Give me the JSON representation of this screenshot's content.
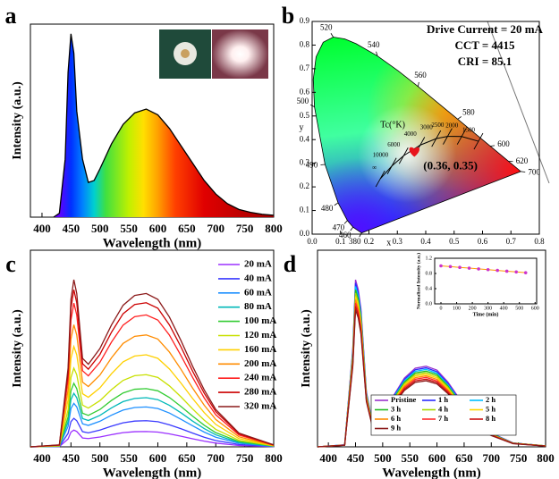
{
  "chart_data": [
    {
      "type": "spectrum",
      "panel_label": "a",
      "xlabel": "Wavelength (nm)",
      "ylabel": "Intensity (a.u.)",
      "x": [
        420,
        430,
        440,
        445,
        450,
        455,
        460,
        470,
        480,
        490,
        500,
        520,
        540,
        560,
        580,
        600,
        620,
        640,
        660,
        680,
        700,
        720,
        740,
        760,
        780,
        800
      ],
      "values": [
        0,
        0.02,
        0.3,
        0.75,
        0.95,
        0.85,
        0.55,
        0.3,
        0.18,
        0.19,
        0.25,
        0.38,
        0.48,
        0.54,
        0.56,
        0.53,
        0.46,
        0.37,
        0.28,
        0.19,
        0.12,
        0.07,
        0.04,
        0.025,
        0.015,
        0.01
      ],
      "color": "#000000",
      "fill": "spectral",
      "xlim": [
        380,
        800
      ],
      "ylim": [
        0,
        1
      ],
      "xticks": [
        400,
        450,
        500,
        550,
        600,
        650,
        700,
        750,
        800
      ]
    },
    {
      "type": "cie",
      "panel_label": "b",
      "xlabel": "x",
      "ylabel": "y",
      "xlim": [
        0,
        0.8
      ],
      "ylim": [
        0,
        0.9
      ],
      "xticks": [
        {
          "value": 0.0,
          "label": "0.0"
        },
        0.1,
        0.2,
        0.3,
        0.4,
        0.5,
        0.6,
        0.7,
        0.8
      ],
      "yticks": [
        {
          "value": 0.0,
          "label": "0.0"
        },
        0.1,
        0.2,
        0.3,
        0.4,
        0.5,
        0.6,
        0.7,
        0.8,
        0.9
      ],
      "annotations": [
        "Drive Current = 20 mA",
        "CCT = 4415",
        "CRI = 85.1"
      ],
      "point": {
        "x": 0.36,
        "y": 0.35,
        "label": "(0.36, 0.35)",
        "color": "#e8141c"
      },
      "spectral_locus": {
        "wavelengths": [
          380,
          460,
          470,
          480,
          490,
          500,
          null,
          null,
          null,
          520,
          null,
          null,
          540,
          null,
          560,
          580,
          600,
          620,
          700
        ],
        "x": [
          0.1741,
          0.144,
          0.1241,
          0.0913,
          0.0454,
          0.0082,
          0.0039,
          0.0139,
          0.0389,
          0.0743,
          0.1142,
          0.1547,
          0.2296,
          0.3016,
          0.3731,
          0.5125,
          0.627,
          0.6915,
          0.7347
        ],
        "y": [
          0.005,
          0.0297,
          0.0578,
          0.1327,
          0.295,
          0.5384,
          0.6548,
          0.7502,
          0.812,
          0.8338,
          0.8262,
          0.8059,
          0.7543,
          0.6923,
          0.6245,
          0.4866,
          0.3725,
          0.3083,
          0.2653
        ]
      },
      "planckian_locus": {
        "title": "Tc(°K)",
        "labels": [
          "∞",
          "10000",
          "6000",
          "4000",
          "3000",
          "2500",
          "2000",
          "1500"
        ],
        "x": [
          0.2399,
          0.2807,
          0.3221,
          0.3805,
          0.4369,
          0.4769,
          0.5266,
          0.5857
        ],
        "y": [
          0.2342,
          0.2883,
          0.3318,
          0.3768,
          0.4041,
          0.4137,
          0.4133,
          0.3931
        ]
      }
    },
    {
      "type": "line",
      "panel_label": "c",
      "xlabel": "Wavelength (nm)",
      "ylabel": "Intensity (a.u.)",
      "x": [
        380,
        430,
        445,
        450,
        455,
        460,
        470,
        480,
        500,
        520,
        540,
        560,
        580,
        600,
        620,
        640,
        660,
        680,
        700,
        740,
        800
      ],
      "xlim": [
        380,
        800
      ],
      "ylim": [
        0,
        1
      ],
      "xticks": [
        400,
        450,
        500,
        550,
        600,
        650,
        700,
        750,
        800
      ],
      "legend": "upper right",
      "series": [
        {
          "name": "20 mA",
          "color": "#9b30ff",
          "values": [
            0,
            0.001,
            0.04,
            0.075,
            0.085,
            0.078,
            0.045,
            0.042,
            0.05,
            0.062,
            0.072,
            0.077,
            0.078,
            0.075,
            0.066,
            0.054,
            0.041,
            0.029,
            0.019,
            0.007,
            0.001
          ]
        },
        {
          "name": "40 mA",
          "color": "#3a3aff",
          "values": [
            0,
            0.002,
            0.068,
            0.128,
            0.145,
            0.133,
            0.077,
            0.071,
            0.085,
            0.105,
            0.122,
            0.131,
            0.133,
            0.128,
            0.112,
            0.092,
            0.07,
            0.049,
            0.032,
            0.012,
            0.002
          ]
        },
        {
          "name": "60 mA",
          "color": "#1e90ff",
          "values": [
            0,
            0.003,
            0.104,
            0.195,
            0.221,
            0.203,
            0.117,
            0.109,
            0.13,
            0.161,
            0.187,
            0.2,
            0.203,
            0.195,
            0.172,
            0.14,
            0.107,
            0.075,
            0.049,
            0.018,
            0.003
          ]
        },
        {
          "name": "80 mA",
          "color": "#00b8b8",
          "values": [
            0,
            0.003,
            0.128,
            0.24,
            0.272,
            0.25,
            0.144,
            0.134,
            0.16,
            0.198,
            0.23,
            0.246,
            0.25,
            0.24,
            0.211,
            0.173,
            0.131,
            0.093,
            0.061,
            0.022,
            0.003
          ]
        },
        {
          "name": "100 mA",
          "color": "#33cc33",
          "values": [
            0,
            0.004,
            0.152,
            0.285,
            0.323,
            0.296,
            0.171,
            0.16,
            0.19,
            0.236,
            0.274,
            0.293,
            0.296,
            0.285,
            0.251,
            0.205,
            0.156,
            0.11,
            0.072,
            0.027,
            0.004
          ]
        },
        {
          "name": "120 mA",
          "color": "#c8e000",
          "values": [
            0,
            0.005,
            0.188,
            0.353,
            0.4,
            0.367,
            0.212,
            0.197,
            0.235,
            0.291,
            0.338,
            0.362,
            0.367,
            0.353,
            0.31,
            0.254,
            0.193,
            0.136,
            0.089,
            0.033,
            0.005
          ]
        },
        {
          "name": "160 mA",
          "color": "#ffd000",
          "values": [
            0,
            0.006,
            0.24,
            0.45,
            0.51,
            0.468,
            0.27,
            0.252,
            0.3,
            0.372,
            0.432,
            0.462,
            0.468,
            0.45,
            0.396,
            0.324,
            0.246,
            0.174,
            0.114,
            0.042,
            0.006
          ]
        },
        {
          "name": "200 mA",
          "color": "#ff8c00",
          "values": [
            0,
            0.007,
            0.292,
            0.548,
            0.621,
            0.569,
            0.329,
            0.307,
            0.365,
            0.453,
            0.526,
            0.562,
            0.569,
            0.548,
            0.482,
            0.394,
            0.299,
            0.212,
            0.139,
            0.051,
            0.007
          ]
        },
        {
          "name": "240 mA",
          "color": "#ff2020",
          "values": [
            0,
            0.009,
            0.344,
            0.645,
            0.731,
            0.671,
            0.387,
            0.361,
            0.43,
            0.533,
            0.619,
            0.662,
            0.671,
            0.645,
            0.568,
            0.464,
            0.353,
            0.249,
            0.163,
            0.06,
            0.009
          ]
        },
        {
          "name": "280 mA",
          "color": "#cc0000",
          "values": [
            0,
            0.009,
            0.376,
            0.705,
            0.799,
            0.733,
            0.423,
            0.395,
            0.47,
            0.583,
            0.677,
            0.724,
            0.733,
            0.705,
            0.62,
            0.508,
            0.385,
            0.273,
            0.179,
            0.066,
            0.009
          ]
        },
        {
          "name": "320 mA",
          "color": "#8b1a1a",
          "values": [
            0,
            0.01,
            0.4,
            0.75,
            0.85,
            0.78,
            0.45,
            0.42,
            0.5,
            0.62,
            0.72,
            0.77,
            0.78,
            0.75,
            0.66,
            0.54,
            0.41,
            0.29,
            0.19,
            0.07,
            0.01
          ]
        }
      ]
    },
    {
      "type": "line",
      "panel_label": "d",
      "xlabel": "Wavelength (nm)",
      "ylabel": "Intensity (a.u.)",
      "x": [
        380,
        430,
        445,
        450,
        455,
        460,
        470,
        480,
        500,
        520,
        540,
        560,
        580,
        600,
        620,
        640,
        660,
        680,
        700,
        740,
        800
      ],
      "xlim": [
        380,
        800
      ],
      "ylim": [
        0,
        1
      ],
      "xticks": [
        400,
        450,
        500,
        550,
        600,
        650,
        700,
        750,
        800
      ],
      "legend": "lower center",
      "series": [
        {
          "name": "Pristine",
          "color": "#9932cc",
          "values": [
            0,
            0.01,
            0.5,
            0.85,
            0.8,
            0.7,
            0.28,
            0.14,
            0.15,
            0.26,
            0.35,
            0.4,
            0.41,
            0.39,
            0.33,
            0.25,
            0.17,
            0.11,
            0.07,
            0.02,
            0.005
          ]
        },
        {
          "name": "1 h",
          "color": "#2a2aff",
          "values": [
            0,
            0.01,
            0.49,
            0.833,
            0.784,
            0.686,
            0.274,
            0.137,
            0.147,
            0.255,
            0.343,
            0.392,
            0.402,
            0.382,
            0.323,
            0.245,
            0.167,
            0.108,
            0.069,
            0.02,
            0.005
          ]
        },
        {
          "name": "2 h",
          "color": "#00bfff",
          "values": [
            0,
            0.01,
            0.48,
            0.816,
            0.768,
            0.672,
            0.269,
            0.134,
            0.144,
            0.25,
            0.336,
            0.384,
            0.394,
            0.374,
            0.317,
            0.24,
            0.163,
            0.106,
            0.067,
            0.019,
            0.005
          ]
        },
        {
          "name": "3 h",
          "color": "#22bb22",
          "values": [
            0,
            0.009,
            0.47,
            0.799,
            0.752,
            0.658,
            0.263,
            0.132,
            0.141,
            0.244,
            0.329,
            0.376,
            0.385,
            0.367,
            0.31,
            0.235,
            0.16,
            0.103,
            0.066,
            0.019,
            0.005
          ]
        },
        {
          "name": "4 h",
          "color": "#a8d800",
          "values": [
            0,
            0.009,
            0.46,
            0.782,
            0.736,
            0.644,
            0.258,
            0.129,
            0.138,
            0.239,
            0.322,
            0.368,
            0.377,
            0.359,
            0.304,
            0.23,
            0.156,
            0.101,
            0.064,
            0.018,
            0.005
          ]
        },
        {
          "name": "5 h",
          "color": "#ffd700",
          "values": [
            0,
            0.009,
            0.45,
            0.765,
            0.72,
            0.63,
            0.252,
            0.126,
            0.135,
            0.234,
            0.315,
            0.36,
            0.369,
            0.351,
            0.297,
            0.225,
            0.153,
            0.099,
            0.063,
            0.018,
            0.005
          ]
        },
        {
          "name": "6 h",
          "color": "#ff8c00",
          "values": [
            0,
            0.009,
            0.44,
            0.748,
            0.704,
            0.616,
            0.246,
            0.123,
            0.132,
            0.229,
            0.308,
            0.352,
            0.361,
            0.343,
            0.29,
            0.22,
            0.15,
            0.097,
            0.062,
            0.018,
            0.004
          ]
        },
        {
          "name": "7 h",
          "color": "#ff2a2a",
          "values": [
            0,
            0.009,
            0.43,
            0.731,
            0.688,
            0.602,
            0.241,
            0.12,
            0.129,
            0.224,
            0.301,
            0.344,
            0.353,
            0.335,
            0.284,
            0.215,
            0.146,
            0.095,
            0.06,
            0.017,
            0.004
          ]
        },
        {
          "name": "8 h",
          "color": "#cc1111",
          "values": [
            0,
            0.008,
            0.42,
            0.714,
            0.672,
            0.588,
            0.235,
            0.118,
            0.126,
            0.218,
            0.294,
            0.336,
            0.344,
            0.328,
            0.277,
            0.21,
            0.143,
            0.092,
            0.059,
            0.017,
            0.004
          ]
        },
        {
          "name": "9 h",
          "color": "#8b1a1a",
          "values": [
            0,
            0.008,
            0.41,
            0.697,
            0.656,
            0.574,
            0.23,
            0.115,
            0.123,
            0.213,
            0.287,
            0.328,
            0.336,
            0.32,
            0.271,
            0.205,
            0.139,
            0.09,
            0.057,
            0.016,
            0.004
          ]
        }
      ],
      "inset": {
        "type": "line",
        "xlabel": "Time (min)",
        "ylabel": "Normalized Intensity (a.u.)",
        "x": [
          0,
          60,
          120,
          180,
          240,
          300,
          360,
          420,
          480,
          540
        ],
        "values": [
          1,
          0.98,
          0.96,
          0.94,
          0.92,
          0.9,
          0.88,
          0.86,
          0.84,
          0.82
        ],
        "color": "#ff9900",
        "marker_color": "#cc33cc",
        "xlim": [
          -40,
          610
        ],
        "ylim": [
          0,
          1.2
        ],
        "xticks": [
          0,
          100,
          200,
          300,
          400,
          500,
          600
        ],
        "yticks": [
          {
            "value": 0.0,
            "label": "0.0"
          },
          {
            "value": 0.4,
            "label": "0.4"
          },
          {
            "value": 0.8,
            "label": "0.8"
          },
          {
            "value": 1.2,
            "label": "1.2"
          }
        ]
      }
    }
  ]
}
